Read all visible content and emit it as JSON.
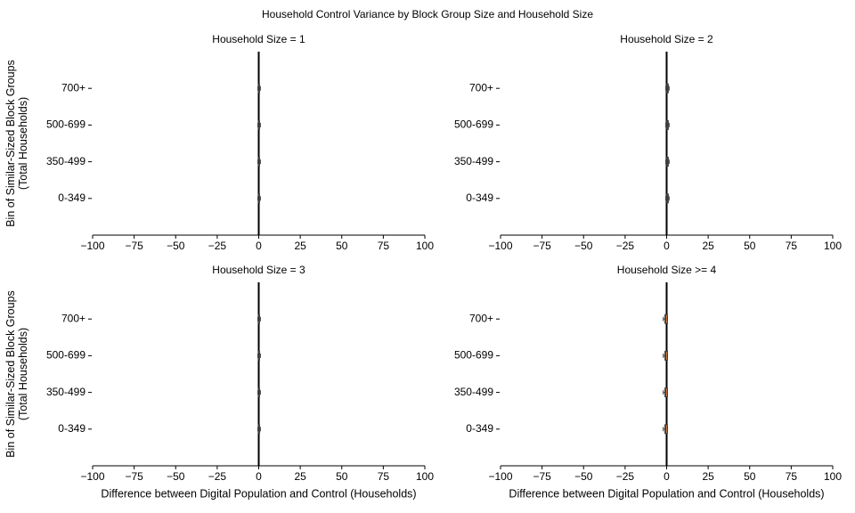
{
  "title": "Household Control Variance by Block Group Size and Household Size",
  "chart_data": [
    {
      "type": "box",
      "title": "Household Size = 1",
      "ylabel": "Bin of Similar-Sized Block Groups\n(Total Households)",
      "categories": [
        "0-349",
        "350-499",
        "500-699",
        "700+"
      ],
      "boxes": [
        {
          "min": -0.5,
          "q1": -0.3,
          "median": 0,
          "q3": 0.5,
          "max": 1
        },
        {
          "min": -0.5,
          "q1": -0.3,
          "median": 0,
          "q3": 0.5,
          "max": 1
        },
        {
          "min": -0.5,
          "q1": -0.3,
          "median": 0,
          "q3": 0.5,
          "max": 1
        },
        {
          "min": -0.5,
          "q1": -0.3,
          "median": 0,
          "q3": 0.5,
          "max": 1
        }
      ],
      "color": "#e07b39",
      "reference_line": 0,
      "xlim": [
        -100,
        100
      ],
      "xticks": [
        {
          "value": -100,
          "label": "−100"
        },
        {
          "value": -75,
          "label": "−75"
        },
        {
          "value": -50,
          "label": "−50"
        },
        {
          "value": -25,
          "label": "−25"
        },
        0,
        25,
        50,
        75,
        100
      ]
    },
    {
      "type": "box",
      "title": "Household Size = 2",
      "categories": [
        "0-349",
        "350-499",
        "500-699",
        "700+"
      ],
      "boxes": [
        {
          "min": -0.5,
          "q1": 0,
          "median": 0.5,
          "q3": 1,
          "max": 1.5
        },
        {
          "min": -0.5,
          "q1": 0,
          "median": 0.5,
          "q3": 1,
          "max": 1.5
        },
        {
          "min": -0.5,
          "q1": 0,
          "median": 0.5,
          "q3": 1,
          "max": 1.5
        },
        {
          "min": -0.5,
          "q1": 0,
          "median": 0.5,
          "q3": 1,
          "max": 1.5
        }
      ],
      "color": "#e07b39",
      "reference_line": 0,
      "xlim": [
        -100,
        100
      ],
      "xticks": [
        {
          "value": -100,
          "label": "−100"
        },
        {
          "value": -75,
          "label": "−75"
        },
        {
          "value": -50,
          "label": "−50"
        },
        {
          "value": -25,
          "label": "−25"
        },
        0,
        25,
        50,
        75,
        100
      ]
    },
    {
      "type": "box",
      "title": "Household Size = 3",
      "ylabel": "Bin of Similar-Sized Block Groups\n(Total Households)",
      "xlabel": "Difference between Digital Population and Control (Households)",
      "categories": [
        "0-349",
        "350-499",
        "500-699",
        "700+"
      ],
      "boxes": [
        {
          "min": -0.5,
          "q1": -0.3,
          "median": 0,
          "q3": 0.5,
          "max": 1
        },
        {
          "min": -0.5,
          "q1": -0.3,
          "median": 0,
          "q3": 0.5,
          "max": 1
        },
        {
          "min": -0.5,
          "q1": -0.3,
          "median": 0,
          "q3": 0.5,
          "max": 1
        },
        {
          "min": -0.5,
          "q1": -0.3,
          "median": 0,
          "q3": 0.5,
          "max": 1
        }
      ],
      "color": "#e07b39",
      "reference_line": 0,
      "xlim": [
        -100,
        100
      ],
      "xticks": [
        {
          "value": -100,
          "label": "−100"
        },
        {
          "value": -75,
          "label": "−75"
        },
        {
          "value": -50,
          "label": "−50"
        },
        {
          "value": -25,
          "label": "−25"
        },
        0,
        25,
        50,
        75,
        100
      ]
    },
    {
      "type": "box",
      "title": "Household Size >= 4",
      "xlabel": "Difference between Digital Population and Control (Households)",
      "categories": [
        "0-349",
        "350-499",
        "500-699",
        "700+"
      ],
      "boxes": [
        {
          "min": -2,
          "q1": -1,
          "median": -0.5,
          "q3": 0.5,
          "max": 0.5
        },
        {
          "min": -2,
          "q1": -1,
          "median": -0.5,
          "q3": 0.5,
          "max": 0.5
        },
        {
          "min": -2,
          "q1": -1,
          "median": -0.5,
          "q3": 0.5,
          "max": 0.5
        },
        {
          "min": -2,
          "q1": -1,
          "median": -0.5,
          "q3": 0.5,
          "max": 0.5
        }
      ],
      "color": "#e07b39",
      "reference_line": 0,
      "xlim": [
        -100,
        100
      ],
      "xticks": [
        {
          "value": -100,
          "label": "−100"
        },
        {
          "value": -75,
          "label": "−75"
        },
        {
          "value": -50,
          "label": "−50"
        },
        {
          "value": -25,
          "label": "−25"
        },
        0,
        25,
        50,
        75,
        100
      ]
    }
  ]
}
